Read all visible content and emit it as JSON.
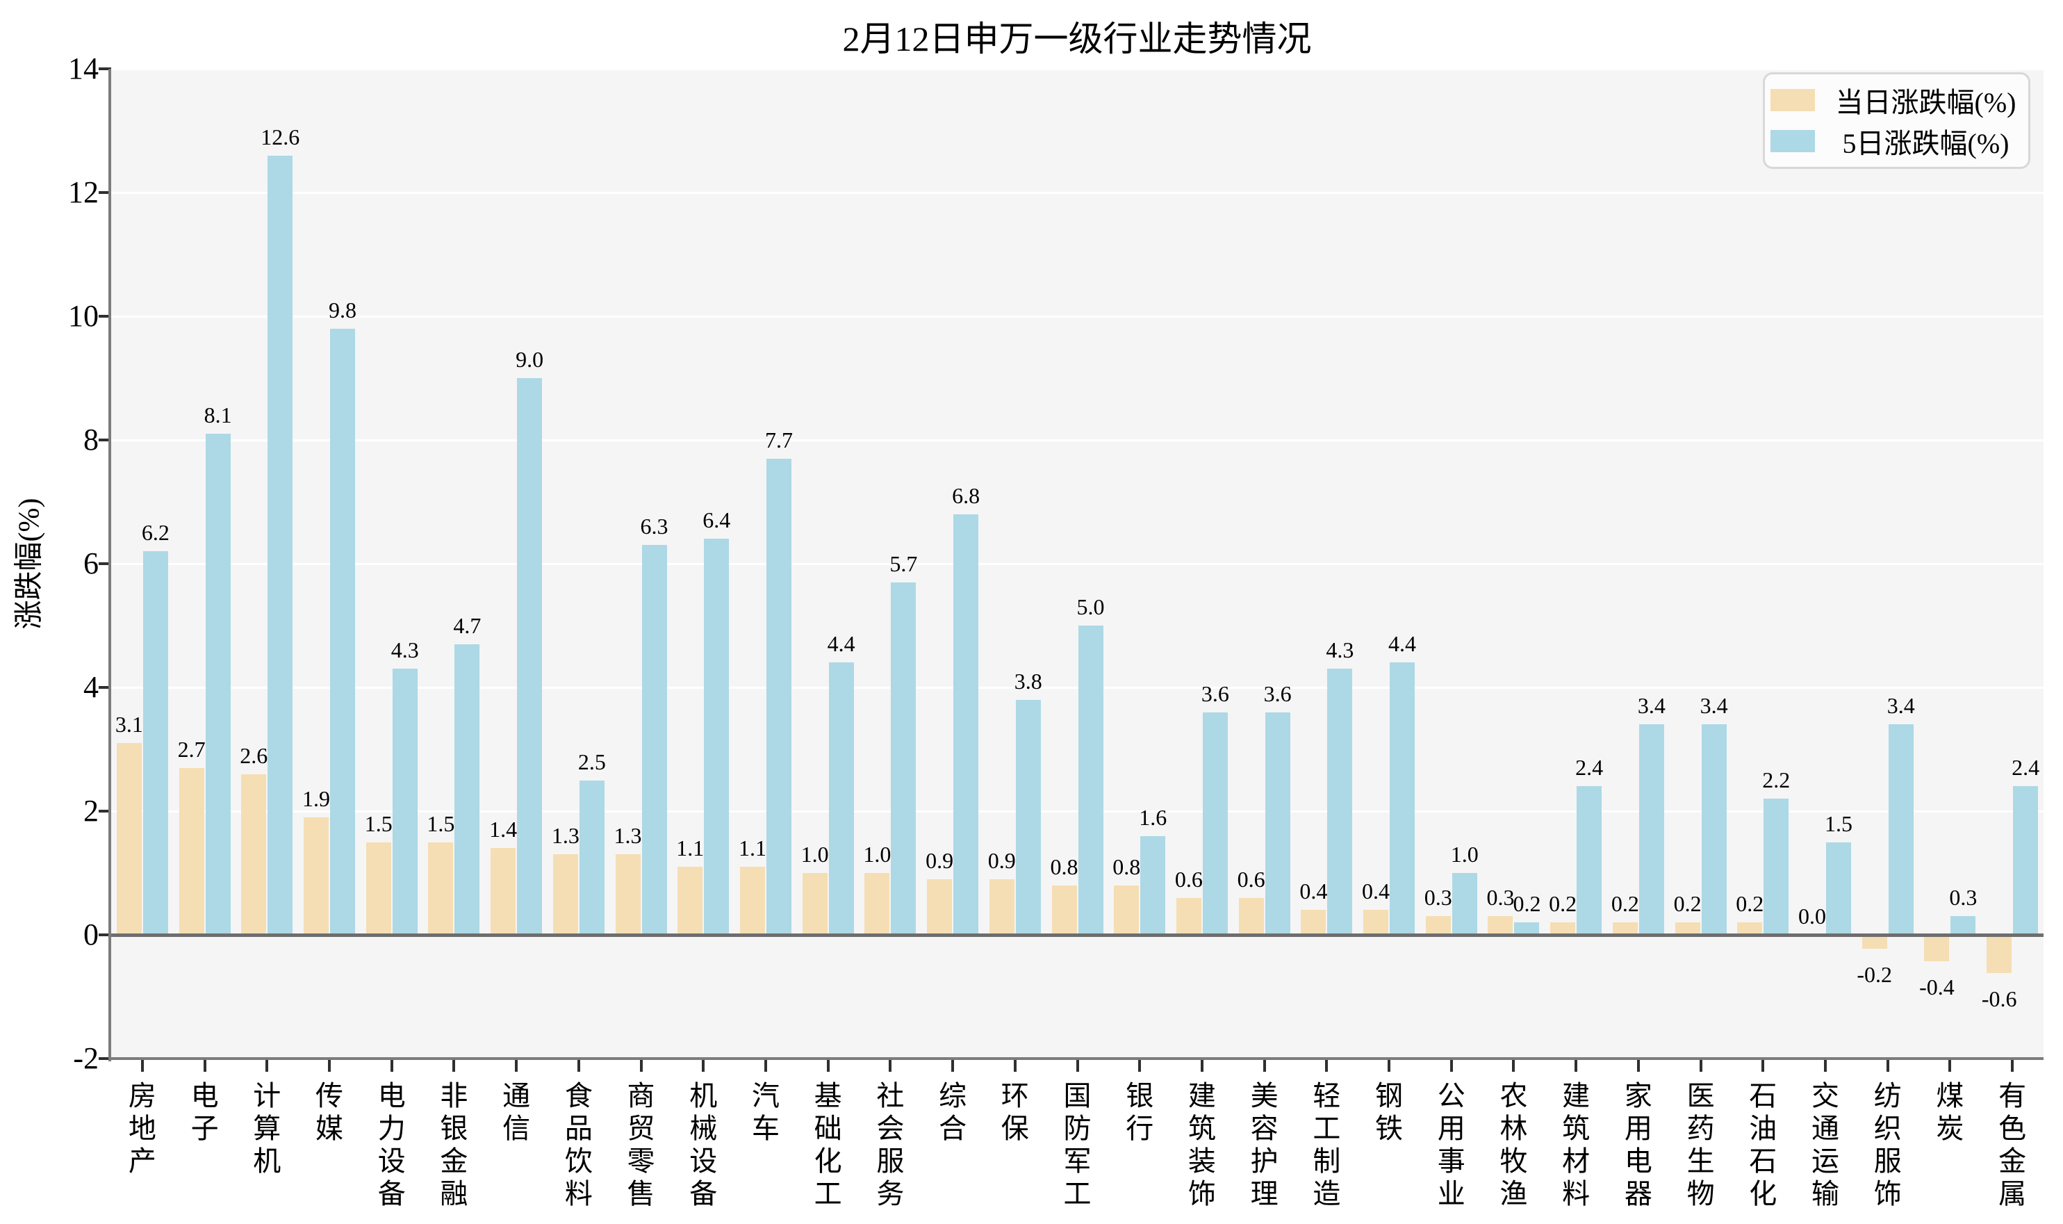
{
  "chart_data": {
    "type": "bar",
    "title": "2月12日申万一级行业走势情况",
    "xlabel": "",
    "ylabel": "涨跌幅(%)",
    "ylim": [
      -2,
      14
    ],
    "yticks": [
      -2,
      0,
      2,
      4,
      6,
      8,
      10,
      12,
      14
    ],
    "grid": "horizontal",
    "legend_position": "top-right",
    "value_label_format": "one-decimal",
    "categories": [
      "房地产",
      "电子",
      "计算机",
      "传媒",
      "电力设备",
      "非银金融",
      "通信",
      "食品饮料",
      "商贸零售",
      "机械设备",
      "汽车",
      "基础化工",
      "社会服务",
      "综合",
      "环保",
      "国防军工",
      "银行",
      "建筑装饰",
      "美容护理",
      "轻工制造",
      "钢铁",
      "公用事业",
      "农林牧渔",
      "建筑材料",
      "家用电器",
      "医药生物",
      "石油石化",
      "交通运输",
      "纺织服饰",
      "煤炭",
      "有色金属"
    ],
    "series": [
      {
        "name": "当日涨跌幅(%)",
        "color": "#F5DEB3",
        "values": [
          3.1,
          2.7,
          2.6,
          1.9,
          1.5,
          1.5,
          1.4,
          1.3,
          1.3,
          1.1,
          1.1,
          1.0,
          1.0,
          0.9,
          0.9,
          0.8,
          0.8,
          0.6,
          0.6,
          0.4,
          0.4,
          0.3,
          0.3,
          0.2,
          0.2,
          0.2,
          0.2,
          0.0,
          -0.2,
          -0.4,
          -0.6
        ]
      },
      {
        "name": "5日涨跌幅(%)",
        "color": "#ADD8E6",
        "values": [
          6.2,
          8.1,
          12.6,
          9.8,
          4.3,
          4.7,
          9.0,
          2.5,
          6.3,
          6.4,
          7.7,
          4.4,
          5.7,
          6.8,
          3.8,
          5.0,
          1.6,
          3.6,
          3.6,
          4.3,
          4.4,
          1.0,
          0.2,
          2.4,
          3.4,
          3.4,
          2.2,
          1.5,
          3.4,
          0.3,
          2.4
        ]
      }
    ],
    "colors": {
      "plot_background": "#F5F5F5",
      "gridline": "#FFFFFF",
      "axis_spine": "#7C7C7C",
      "zero_line": "#6E6E6E",
      "tick_mark": "#2F2F2F",
      "text": "#000000",
      "page_background": "#FFFFFF"
    }
  }
}
